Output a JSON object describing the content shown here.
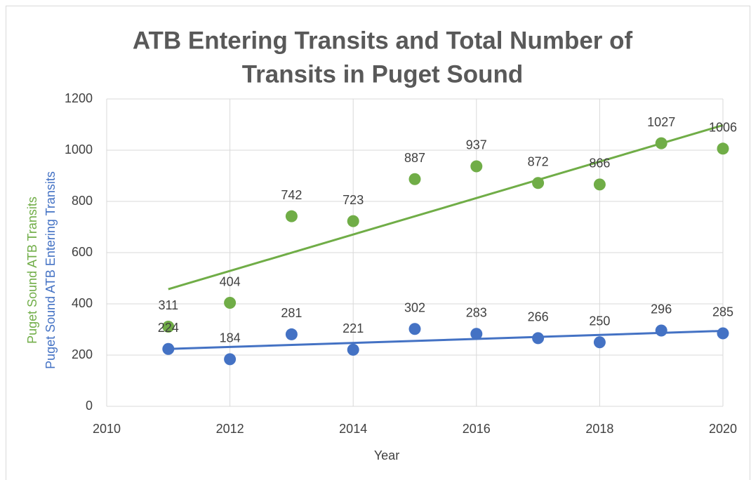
{
  "chart_data": {
    "type": "scatter",
    "title": [
      "ATB Entering Transits and Total Number of",
      "Transits in Puget Sound"
    ],
    "xlabel": "Year",
    "x": [
      2011,
      2012,
      2013,
      2014,
      2015,
      2016,
      2017,
      2018,
      2019,
      2020
    ],
    "series": [
      {
        "name": "Puget Sound ATB Transits",
        "color": "#70ad47",
        "values": [
          311,
          404,
          742,
          723,
          887,
          937,
          872,
          866,
          1027,
          1006
        ]
      },
      {
        "name": "Puget Sound ATB Entering Transits",
        "color": "#4472c4",
        "values": [
          224,
          184,
          281,
          221,
          302,
          283,
          266,
          250,
          296,
          285
        ]
      }
    ],
    "trendline": "linear",
    "xlim": [
      2010,
      2020
    ],
    "xticks": [
      2010,
      2012,
      2014,
      2016,
      2018,
      2020
    ],
    "ylim": [
      0,
      1200
    ],
    "yticks": [
      0,
      200,
      400,
      600,
      800,
      1000,
      1200
    ],
    "grid": true
  }
}
